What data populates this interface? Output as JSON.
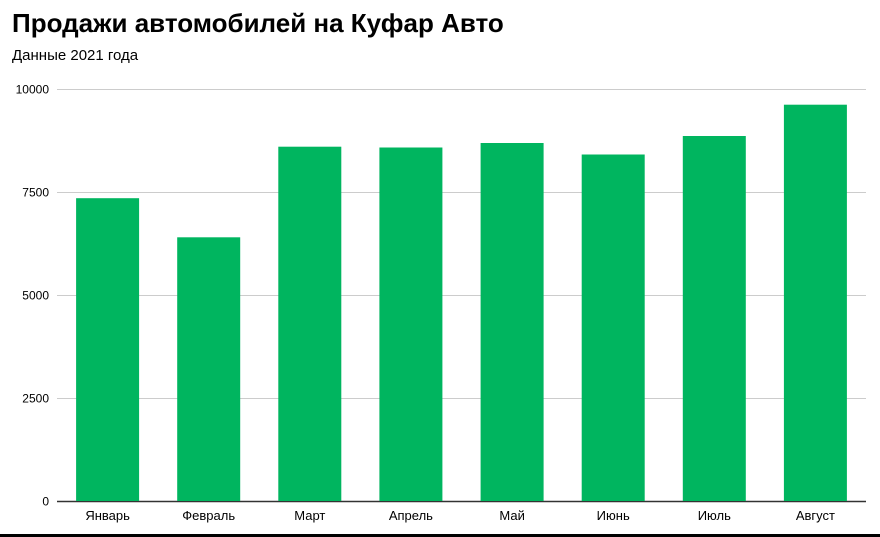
{
  "chart_data": {
    "type": "bar",
    "title": "Продажи автомобилей на Куфар Авто",
    "subtitle": "Данные 2021 года",
    "xlabel": "",
    "ylabel": "",
    "categories": [
      "Январь",
      "Февраль",
      "Март",
      "Апрель",
      "Май",
      "Июнь",
      "Июль",
      "Август"
    ],
    "values": [
      7350,
      6400,
      8600,
      8580,
      8690,
      8410,
      8860,
      9620
    ],
    "ylim": [
      0,
      10000
    ],
    "yticks": [
      "0",
      "2500",
      "5000",
      "7500",
      "10000"
    ],
    "grid": true,
    "legend": "none",
    "colors": {
      "bar": "#00b55f",
      "grid": "#cccccc",
      "axis": "#333333"
    }
  }
}
